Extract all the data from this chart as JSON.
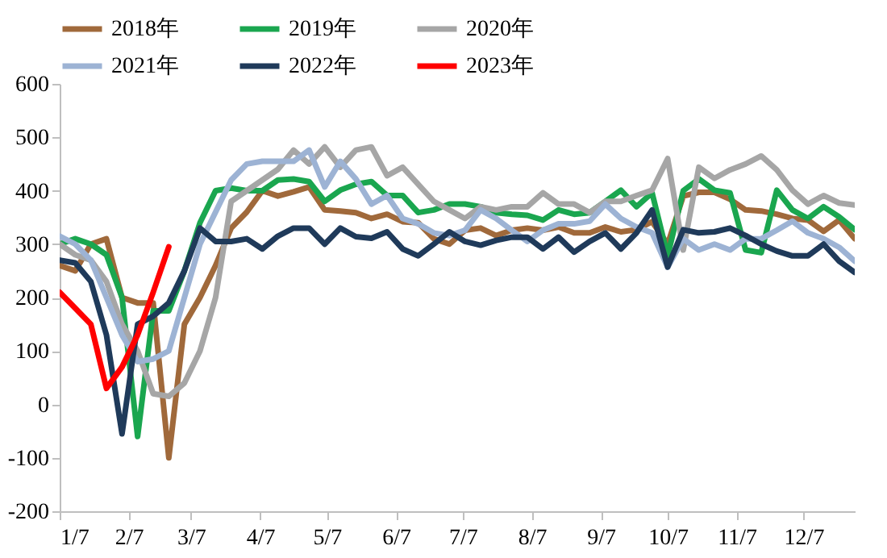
{
  "chart_data": {
    "type": "line",
    "legend": "top",
    "line_style": "solid",
    "xlim": [
      "--01-07",
      "--12-30"
    ],
    "ylim": [
      -200,
      600
    ],
    "yticks": [
      -200,
      -100,
      0,
      100,
      200,
      300,
      400,
      500,
      600
    ],
    "xticks": [
      {
        "value": "--01-07",
        "label": "1/7"
      },
      {
        "value": "--02-07",
        "label": "2/7"
      },
      {
        "value": "--03-07",
        "label": "3/7"
      },
      {
        "value": "--04-07",
        "label": "4/7"
      },
      {
        "value": "--05-07",
        "label": "5/7"
      },
      {
        "value": "--06-07",
        "label": "6/7"
      },
      {
        "value": "--07-07",
        "label": "7/7"
      },
      {
        "value": "--08-07",
        "label": "8/7"
      },
      {
        "value": "--09-07",
        "label": "9/7"
      },
      {
        "value": "--10-07",
        "label": "10/7"
      },
      {
        "value": "--11-07",
        "label": "11/7"
      },
      {
        "value": "--12-07",
        "label": "12/7"
      }
    ],
    "x": [
      "--01-07",
      "--01-14",
      "--01-21",
      "--01-28",
      "--02-04",
      "--02-11",
      "--02-18",
      "--02-25",
      "--03-04",
      "--03-11",
      "--03-18",
      "--03-25",
      "--04-01",
      "--04-08",
      "--04-15",
      "--04-22",
      "--04-29",
      "--05-06",
      "--05-13",
      "--05-20",
      "--05-27",
      "--06-03",
      "--06-10",
      "--06-17",
      "--06-24",
      "--07-01",
      "--07-08",
      "--07-15",
      "--07-22",
      "--07-29",
      "--08-05",
      "--08-12",
      "--08-19",
      "--08-26",
      "--09-02",
      "--09-09",
      "--09-16",
      "--09-23",
      "--09-30",
      "--10-07",
      "--10-14",
      "--10-21",
      "--10-28",
      "--11-04",
      "--11-11",
      "--11-18",
      "--11-25",
      "--12-02",
      "--12-09",
      "--12-16",
      "--12-23",
      "--12-30"
    ],
    "series": [
      {
        "name": "2018年",
        "color": "#a0693b",
        "values": [
          260,
          250,
          300,
          310,
          200,
          190,
          190,
          -100,
          150,
          200,
          260,
          330,
          360,
          400,
          390,
          398,
          407,
          364,
          362,
          359,
          348,
          356,
          342,
          340,
          310,
          300,
          326,
          330,
          316,
          326,
          330,
          326,
          332,
          321,
          321,
          332,
          323,
          327,
          342,
          300,
          390,
          397,
          397,
          384,
          364,
          362,
          356,
          348,
          345,
          324,
          345,
          310
        ]
      },
      {
        "name": "2019年",
        "color": "#1aa64f",
        "values": [
          300,
          310,
          300,
          280,
          200,
          -60,
          175,
          175,
          250,
          340,
          400,
          405,
          400,
          400,
          420,
          422,
          417,
          380,
          401,
          412,
          417,
          391,
          391,
          359,
          364,
          375,
          375,
          370,
          359,
          356,
          354,
          345,
          364,
          356,
          359,
          380,
          401,
          370,
          396,
          278,
          400,
          422,
          401,
          396,
          289,
          284,
          401,
          364,
          348,
          370,
          351,
          327
        ]
      },
      {
        "name": "2020年",
        "color": "#a6a6a6",
        "values": [
          300,
          280,
          270,
          230,
          150,
          100,
          20,
          15,
          40,
          100,
          200,
          380,
          400,
          420,
          440,
          476,
          450,
          482,
          444,
          476,
          482,
          428,
          444,
          412,
          380,
          364,
          348,
          370,
          364,
          370,
          370,
          396,
          375,
          375,
          359,
          380,
          380,
          391,
          401,
          460,
          289,
          444,
          423,
          439,
          450,
          465,
          439,
          401,
          375,
          391,
          377,
          373
        ]
      },
      {
        "name": "2021年",
        "color": "#9db3d4",
        "values": [
          315,
          300,
          270,
          200,
          130,
          80,
          85,
          100,
          200,
          300,
          360,
          420,
          450,
          455,
          455,
          455,
          476,
          407,
          455,
          422,
          375,
          391,
          348,
          338,
          321,
          316,
          326,
          364,
          348,
          326,
          305,
          326,
          338,
          338,
          343,
          375,
          348,
          332,
          321,
          257,
          310,
          289,
          300,
          289,
          310,
          310,
          326,
          343,
          321,
          310,
          294,
          268
        ]
      },
      {
        "name": "2022年",
        "color": "#1f3a5a",
        "values": [
          270,
          265,
          230,
          130,
          -55,
          150,
          165,
          190,
          250,
          330,
          305,
          305,
          310,
          291,
          315,
          330,
          330,
          300,
          330,
          314,
          311,
          323,
          291,
          278,
          300,
          323,
          305,
          298,
          307,
          313,
          313,
          291,
          313,
          285,
          305,
          321,
          291,
          321,
          364,
          257,
          327,
          321,
          323,
          330,
          316,
          300,
          287,
          278,
          278,
          300,
          268,
          247
        ]
      },
      {
        "name": "2023年",
        "color": "#ff0000",
        "x": [
          "--01-07",
          "--01-14",
          "--01-21",
          "--01-28",
          "--02-04",
          "--02-11",
          "--02-18",
          "--02-25"
        ],
        "values": [
          210,
          180,
          150,
          30,
          70,
          130,
          210,
          295
        ]
      }
    ]
  }
}
